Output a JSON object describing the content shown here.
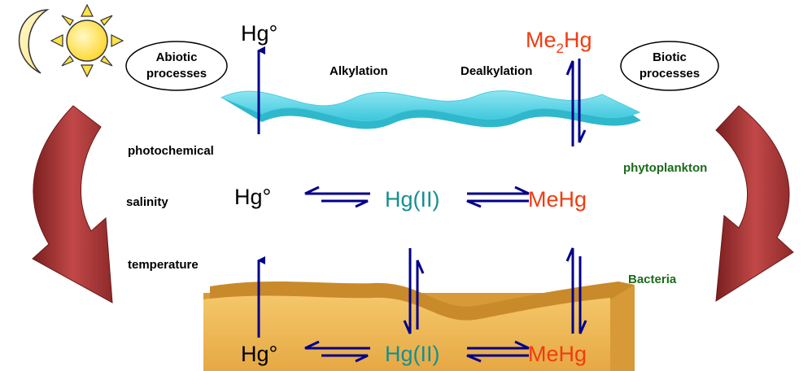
{
  "abiotic": {
    "line1": "Abiotic",
    "line2": "processes"
  },
  "biotic": {
    "line1": "Biotic",
    "line2": "processes"
  },
  "top": {
    "hg0": "Hg°",
    "me2hg_prefix": "Me",
    "me2hg_sub": "2",
    "me2hg_suffix": "Hg",
    "alkylation": "Alkylation",
    "dealkylation": "Dealkylation"
  },
  "factors": {
    "photochemical": "photochemical",
    "salinity": "salinity",
    "temperature": "temperature"
  },
  "biology": {
    "phytoplankton": "phytoplankton",
    "bacteria": "Bacteria"
  },
  "water": {
    "hg0": "Hg°",
    "hg2": "Hg(II)",
    "mehg": "MeHg"
  },
  "sediment": {
    "hg0": "Hg°",
    "hg2": "Hg(II)",
    "mehg": "MeHg"
  },
  "colors": {
    "arrow": "#00008b",
    "hg2": "#158f8f",
    "mehg": "#f03c10",
    "green_label": "#1a6b1a",
    "curved_arrow": "#a93b3b",
    "water": "#5ad5e6",
    "sediment": "#e6b04c",
    "sun": "#ffe14a",
    "moon": "#ffef99"
  },
  "icons": [
    "moon-icon",
    "sun-icon",
    "curved-arrow-left-icon",
    "curved-arrow-right-icon"
  ]
}
